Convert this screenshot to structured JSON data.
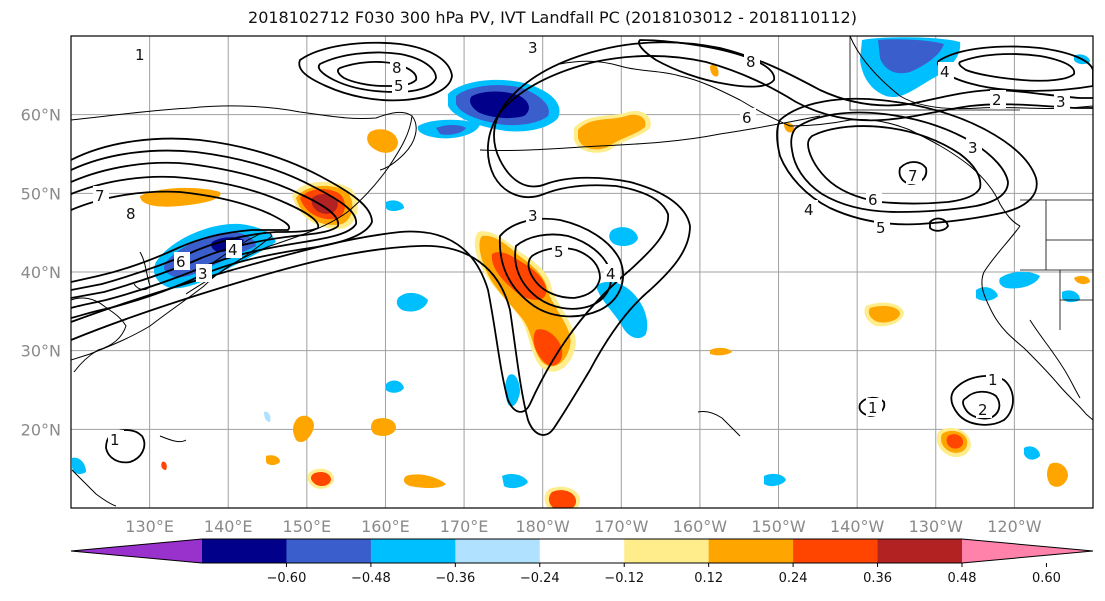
{
  "title": "2018102712 F030 300 hPa PV, IVT Landfall PC (2018103012 - 2018110112)",
  "map": {
    "lon_range": [
      120,
      250
    ],
    "lat_range": [
      10,
      70
    ],
    "lat_ticks": [
      {
        "lat": 20,
        "label": "20°N"
      },
      {
        "lat": 30,
        "label": "30°N"
      },
      {
        "lat": 40,
        "label": "40°N"
      },
      {
        "lat": 50,
        "label": "50°N"
      },
      {
        "lat": 60,
        "label": "60°N"
      }
    ],
    "lon_ticks": [
      {
        "lon": 130,
        "label": "130°E"
      },
      {
        "lon": 140,
        "label": "140°E"
      },
      {
        "lon": 150,
        "label": "150°E"
      },
      {
        "lon": 160,
        "label": "160°E"
      },
      {
        "lon": 170,
        "label": "170°E"
      },
      {
        "lon": 180,
        "label": "180°W"
      },
      {
        "lon": 190,
        "label": "170°W"
      },
      {
        "lon": 200,
        "label": "160°W"
      },
      {
        "lon": 210,
        "label": "150°W"
      },
      {
        "lon": 220,
        "label": "140°W"
      },
      {
        "lon": 230,
        "label": "130°W"
      },
      {
        "lon": 240,
        "label": "120°W"
      }
    ],
    "pv_contour_labels": [
      "1",
      "2",
      "3",
      "4",
      "5",
      "6",
      "7",
      "8"
    ]
  },
  "colorbar": {
    "colors": [
      "#9932cc",
      "#00008b",
      "#3a5fcd",
      "#00bfff",
      "#b0e2ff",
      "#ffffff",
      "#ffec8b",
      "#ffa500",
      "#ff4500",
      "#b22222",
      "#ff82ab"
    ],
    "tick_labels": [
      "−0.60",
      "−0.48",
      "−0.36",
      "−0.24",
      "−0.12",
      "0.12",
      "0.24",
      "0.36",
      "0.48",
      "0.60"
    ]
  }
}
